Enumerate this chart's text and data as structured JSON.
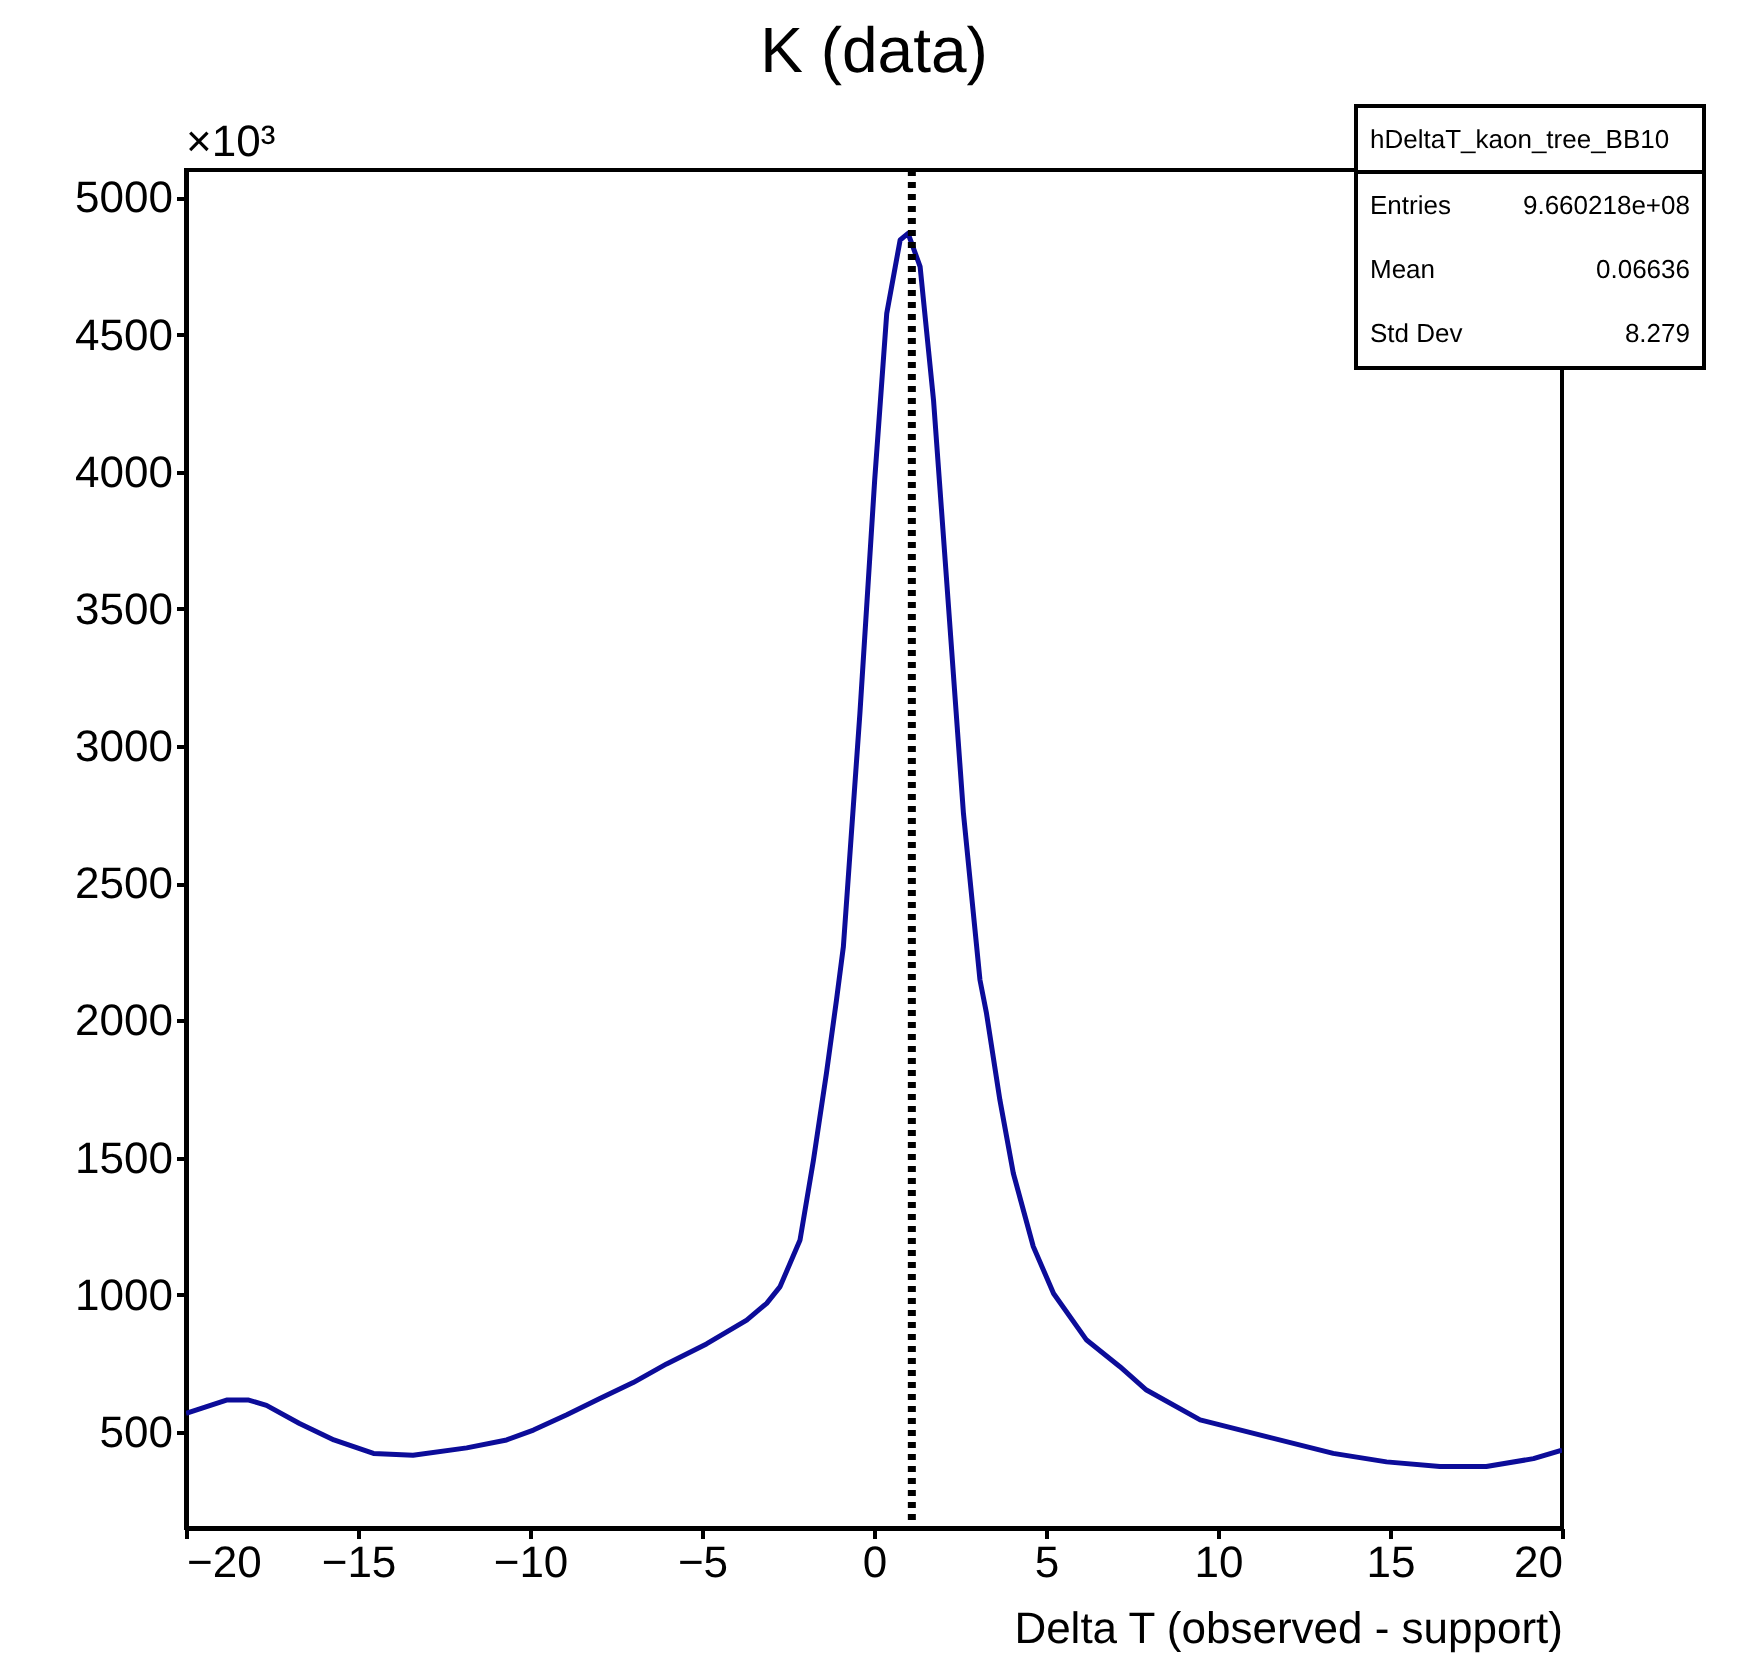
{
  "chart_data": {
    "type": "line",
    "title": "K (data)",
    "xlabel": "Delta T (observed - support)",
    "annotations": [
      "×10³",
      "hDeltaT_kaon_tree_BB10",
      "Entries 9.660218e+08",
      "Mean 0.06636",
      "Std Dev 8.279"
    ],
    "series": [
      {
        "color": "#0c0c99",
        "x": [
          -20,
          -18.8,
          -18.2,
          -17.66,
          -16.7,
          -15.7,
          -14.55,
          -13.4,
          -11.84,
          -10.68,
          -9.9,
          -8.93,
          -7.97,
          -7.0,
          -6.03,
          -4.87,
          -3.7,
          -3.12,
          -2.73,
          -2.15,
          -1.76,
          -1.38,
          -1.09,
          -0.89,
          -0.41,
          0.02,
          0.37,
          0.76,
          0.99,
          1.34,
          1.73,
          2.11,
          2.6,
          3.08,
          3.27,
          3.66,
          4.05,
          4.63,
          5.22,
          6.18,
          7.15,
          7.92,
          9.48,
          11.41,
          13.35,
          14.9,
          16.45,
          17.8,
          19.17,
          20
        ],
        "values": [
          568,
          617,
          617,
          597,
          531,
          471,
          422,
          415,
          442,
          471,
          507,
          563,
          622,
          680,
          748,
          821,
          908,
          969,
          1030,
          1200,
          1491,
          1810,
          2075,
          2269,
          3119,
          3970,
          4577,
          4845,
          4869,
          4748,
          4262,
          3606,
          2755,
          2148,
          2026,
          1710,
          1443,
          1176,
          1005,
          835,
          738,
          653,
          544,
          483,
          422,
          391,
          374,
          374,
          403,
          434
        ]
      }
    ],
    "xlim": [
      -20,
      20
    ],
    "xticks": [
      {
        "value": -20,
        "label": "−20"
      },
      {
        "value": -15,
        "label": "−15"
      },
      {
        "value": -10,
        "label": "−10"
      },
      {
        "value": -5,
        "label": "−5"
      },
      0,
      5,
      10,
      15,
      20
    ],
    "ylim": [
      150,
      5100
    ],
    "yticks": [
      500,
      1000,
      1500,
      2000,
      2500,
      3000,
      3500,
      4000,
      4500,
      5000
    ],
    "ref_lines": [
      {
        "axis": "x",
        "value": 1.1,
        "color": "#000000",
        "line_style": "dotted"
      }
    ],
    "grid": false
  }
}
